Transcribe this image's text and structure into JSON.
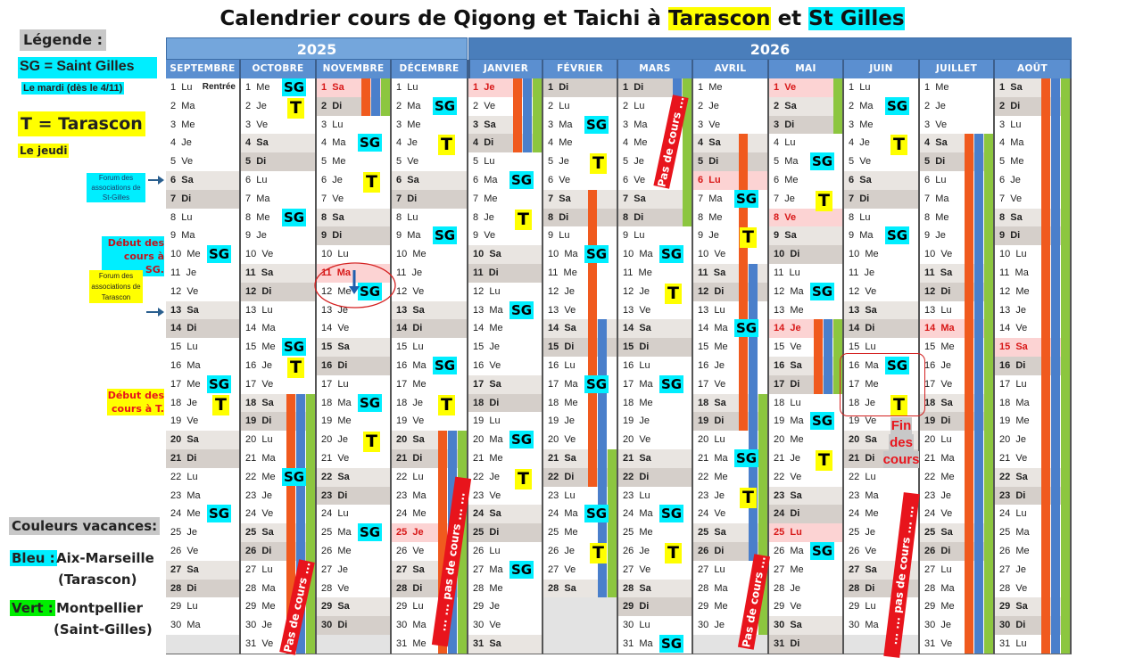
{
  "title": {
    "prefix": "Calendrier cours de Qigong et Taichi à ",
    "place1": "Tarascon",
    "mid": " et ",
    "place2": "St Gilles"
  },
  "legend": {
    "heading": "Légende :",
    "sg_line": "SG  = Saint Gilles",
    "sg_day": "Le mardi (dès le 4/11)",
    "t_line": "T = Tarascon",
    "t_day": "Le jeudi",
    "forum_sg": "Forum des associations de St-Gilles",
    "debut_sg": "Début des cours à SG.",
    "forum_t": "Forum des associations de Tarascon",
    "debut_t": "Début des cours à T.",
    "vacances_heading": "Couleurs vacances:",
    "bleu_key": "Bleu :",
    "bleu_zone": "Aix-Marseille",
    "bleu_place": "(Tarascon)",
    "vert_key": "Vert :",
    "vert_zone": "Montpellier",
    "vert_place": "(Saint-Gilles)"
  },
  "colors": {
    "sg": "#00eeff",
    "t": "#ffff00",
    "orange": "#f05a1e",
    "blue": "#4a7fcb",
    "green": "#8cc63f",
    "holiday": "#fcd3d3",
    "year2025": "#74a6dc",
    "year2026": "#4a7ebb"
  },
  "calendar": {
    "years": [
      "2025",
      "2026"
    ],
    "weekdays": [
      "Lu",
      "Ma",
      "Me",
      "Je",
      "Ve",
      "Sa",
      "Di"
    ],
    "marker_labels": {
      "SG": "SG",
      "T": "T"
    },
    "months": [
      {
        "name": "SEPTEMBRE",
        "first_weekday": "Lu",
        "days": 30,
        "holidays": [],
        "notes": [
          {
            "day": 1,
            "text": "Rentrée"
          }
        ],
        "bars": [],
        "markers": [
          {
            "day": 10,
            "type": "SG"
          },
          {
            "day": 17,
            "type": "SG"
          },
          {
            "day": 18,
            "type": "T"
          },
          {
            "day": 24,
            "type": "SG"
          }
        ]
      },
      {
        "name": "OCTOBRE",
        "first_weekday": "Me",
        "days": 31,
        "holidays": [],
        "bars": [
          {
            "color": "orange",
            "from": 18,
            "to": 31
          },
          {
            "color": "blue",
            "from": 18,
            "to": 31
          },
          {
            "color": "green",
            "from": 18,
            "to": 31
          }
        ],
        "markers": [
          {
            "day": 1,
            "type": "SG"
          },
          {
            "day": 2,
            "type": "T"
          },
          {
            "day": 8,
            "type": "SG"
          },
          {
            "day": 15,
            "type": "SG"
          },
          {
            "day": 16,
            "type": "T"
          },
          {
            "day": 22,
            "type": "SG"
          }
        ]
      },
      {
        "name": "NOVEMBRE",
        "first_weekday": "Sa",
        "days": 30,
        "holidays": [
          1,
          11
        ],
        "bars": [
          {
            "color": "orange",
            "from": 1,
            "to": 2
          },
          {
            "color": "blue",
            "from": 1,
            "to": 2
          },
          {
            "color": "green",
            "from": 1,
            "to": 2
          }
        ],
        "markers": [
          {
            "day": 4,
            "type": "SG"
          },
          {
            "day": 6,
            "type": "T"
          },
          {
            "day": 12,
            "type": "SG"
          },
          {
            "day": 18,
            "type": "SG"
          },
          {
            "day": 20,
            "type": "T"
          },
          {
            "day": 25,
            "type": "SG"
          }
        ]
      },
      {
        "name": "DÉCEMBRE",
        "first_weekday": "Lu",
        "days": 31,
        "holidays": [
          25
        ],
        "bars": [
          {
            "color": "orange",
            "from": 20,
            "to": 31
          },
          {
            "color": "blue",
            "from": 20,
            "to": 31
          },
          {
            "color": "green",
            "from": 20,
            "to": 31
          }
        ],
        "markers": [
          {
            "day": 2,
            "type": "SG"
          },
          {
            "day": 4,
            "type": "T"
          },
          {
            "day": 9,
            "type": "SG"
          },
          {
            "day": 16,
            "type": "SG"
          },
          {
            "day": 18,
            "type": "T"
          }
        ]
      },
      {
        "name": "JANVIER",
        "first_weekday": "Je",
        "days": 31,
        "holidays": [
          1
        ],
        "bars": [
          {
            "color": "orange",
            "from": 1,
            "to": 4
          },
          {
            "color": "blue",
            "from": 1,
            "to": 4
          },
          {
            "color": "green",
            "from": 1,
            "to": 4
          }
        ],
        "markers": [
          {
            "day": 6,
            "type": "SG"
          },
          {
            "day": 8,
            "type": "T"
          },
          {
            "day": 13,
            "type": "SG"
          },
          {
            "day": 20,
            "type": "SG"
          },
          {
            "day": 22,
            "type": "T"
          },
          {
            "day": 27,
            "type": "SG"
          }
        ]
      },
      {
        "name": "FÉVRIER",
        "first_weekday": "Di",
        "days": 28,
        "holidays": [],
        "bars": [
          {
            "color": "orange",
            "from": 7,
            "to": 22
          },
          {
            "color": "blue",
            "from": 14,
            "to": 28
          },
          {
            "color": "green",
            "from": 21,
            "to": 28
          }
        ],
        "markers": [
          {
            "day": 3,
            "type": "SG"
          },
          {
            "day": 5,
            "type": "T"
          },
          {
            "day": 10,
            "type": "SG"
          },
          {
            "day": 17,
            "type": "SG"
          },
          {
            "day": 24,
            "type": "SG"
          },
          {
            "day": 26,
            "type": "T"
          }
        ]
      },
      {
        "name": "MARS",
        "first_weekday": "Di",
        "days": 31,
        "holidays": [],
        "bars": [
          {
            "color": "blue",
            "from": 1,
            "to": 1
          },
          {
            "color": "green",
            "from": 1,
            "to": 8
          }
        ],
        "markers": [
          {
            "day": 10,
            "type": "SG"
          },
          {
            "day": 12,
            "type": "T"
          },
          {
            "day": 17,
            "type": "SG"
          },
          {
            "day": 24,
            "type": "SG"
          },
          {
            "day": 26,
            "type": "T"
          },
          {
            "day": 31,
            "type": "SG"
          }
        ]
      },
      {
        "name": "AVRIL",
        "first_weekday": "Me",
        "days": 30,
        "holidays": [
          6
        ],
        "bars": [
          {
            "color": "orange",
            "from": 4,
            "to": 19
          },
          {
            "color": "blue",
            "from": 11,
            "to": 26
          },
          {
            "color": "green",
            "from": 18,
            "to": 30
          }
        ],
        "markers": [
          {
            "day": 7,
            "type": "SG"
          },
          {
            "day": 9,
            "type": "T"
          },
          {
            "day": 14,
            "type": "SG"
          },
          {
            "day": 21,
            "type": "SG"
          },
          {
            "day": 23,
            "type": "T"
          }
        ]
      },
      {
        "name": "MAI",
        "first_weekday": "Ve",
        "days": 31,
        "holidays": [
          1,
          8,
          14,
          25
        ],
        "bars": [
          {
            "color": "green",
            "from": 1,
            "to": 3
          },
          {
            "color": "orange",
            "from": 14,
            "to": 17
          },
          {
            "color": "blue",
            "from": 14,
            "to": 17
          },
          {
            "color": "green",
            "from": 14,
            "to": 17
          }
        ],
        "markers": [
          {
            "day": 5,
            "type": "SG"
          },
          {
            "day": 7,
            "type": "T"
          },
          {
            "day": 12,
            "type": "SG"
          },
          {
            "day": 19,
            "type": "SG"
          },
          {
            "day": 21,
            "type": "T"
          },
          {
            "day": 26,
            "type": "SG"
          }
        ]
      },
      {
        "name": "JUIN",
        "first_weekday": "Lu",
        "days": 30,
        "holidays": [],
        "bars": [],
        "markers": [
          {
            "day": 2,
            "type": "SG"
          },
          {
            "day": 4,
            "type": "T"
          },
          {
            "day": 9,
            "type": "SG"
          },
          {
            "day": 16,
            "type": "SG"
          },
          {
            "day": 18,
            "type": "T"
          }
        ]
      },
      {
        "name": "JUILLET",
        "first_weekday": "Me",
        "days": 31,
        "holidays": [
          14
        ],
        "bars": [
          {
            "color": "orange",
            "from": 4,
            "to": 31
          },
          {
            "color": "blue",
            "from": 4,
            "to": 31
          },
          {
            "color": "green",
            "from": 4,
            "to": 31
          }
        ],
        "markers": []
      },
      {
        "name": "AOÛT",
        "first_weekday": "Sa",
        "days": 31,
        "holidays": [
          15
        ],
        "bars": [
          {
            "color": "orange",
            "from": 1,
            "to": 31
          },
          {
            "color": "blue",
            "from": 1,
            "to": 31
          },
          {
            "color": "green",
            "from": 1,
            "to": 31
          }
        ],
        "markers": []
      }
    ]
  },
  "banners": {
    "mars": "Pas de cours ...",
    "octobre": "Pas de cours ...",
    "decembre": "... ... pas de cours ... ...",
    "avril": "Pas de cours ...",
    "juin": "... ... pas de cours ... ..."
  },
  "fin_des_cours": [
    "Fin",
    "des",
    "cours"
  ]
}
